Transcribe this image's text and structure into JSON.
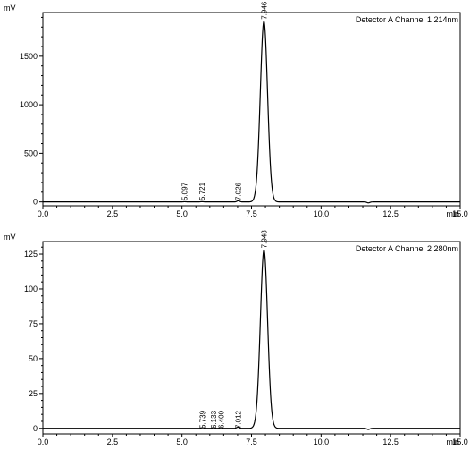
{
  "chart_data": [
    {
      "type": "line",
      "ylabel": "mV",
      "xlabel": "min",
      "title": "Detector A Channel 1 214nm",
      "xlim": [
        0,
        15
      ],
      "ylim": [
        -40,
        1950
      ],
      "x_ticks": [
        "0.0",
        "2.5",
        "5.0",
        "7.5",
        "10.0",
        "12.5",
        "15.0"
      ],
      "y_ticks": [
        "0",
        "500",
        "1000",
        "1500"
      ],
      "y_tick_values": [
        0,
        500,
        1000,
        1500
      ],
      "peaks": [
        {
          "time": 5.097,
          "label": "5.097",
          "height": 2
        },
        {
          "time": 5.721,
          "label": "5.721",
          "height": 3
        },
        {
          "time": 7.026,
          "label": "7.026",
          "height": 12
        },
        {
          "time": 7.946,
          "label": "7.946",
          "height": 1860
        }
      ],
      "baseline_dip": {
        "time": 11.7,
        "depth": -10
      },
      "grid": false
    },
    {
      "type": "line",
      "ylabel": "mV",
      "xlabel": "min",
      "title": "Detector A Channel 2 280nm",
      "xlim": [
        0,
        15
      ],
      "ylim": [
        -4,
        134
      ],
      "x_ticks": [
        "0.0",
        "2.5",
        "5.0",
        "7.5",
        "10.0",
        "12.5",
        "15.0"
      ],
      "y_ticks": [
        "0",
        "25",
        "50",
        "75",
        "100",
        "125"
      ],
      "y_tick_values": [
        0,
        25,
        50,
        75,
        100,
        125
      ],
      "peaks": [
        {
          "time": 5.739,
          "label": "5.739",
          "height": 0.4
        },
        {
          "time": 6.133,
          "label": "6.133",
          "height": 0.4
        },
        {
          "time": 6.4,
          "label": "6.400",
          "height": 0.4
        },
        {
          "time": 7.012,
          "label": "7.012",
          "height": 0.8
        },
        {
          "time": 7.948,
          "label": "7.948",
          "height": 128
        }
      ],
      "baseline_dip": {
        "time": 11.7,
        "depth": -0.8
      },
      "grid": false
    }
  ]
}
